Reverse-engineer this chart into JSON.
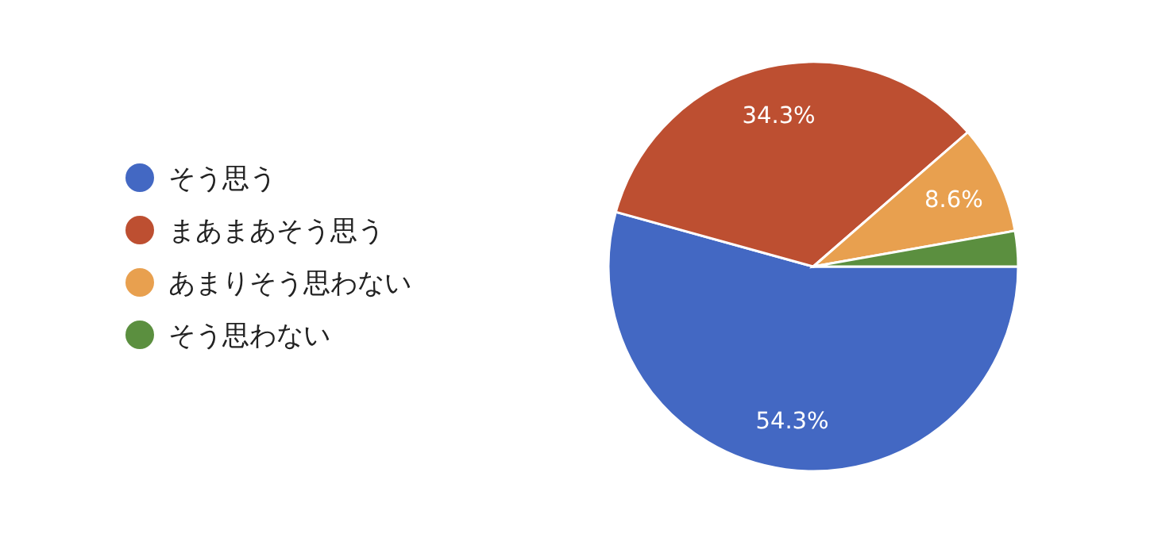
{
  "chart_data": {
    "type": "pie",
    "categories": [
      "そう思う",
      "まあまあそう思う",
      "あまりそう思わない",
      "そう思わない"
    ],
    "values": [
      54.3,
      34.3,
      8.6,
      2.8
    ],
    "colors": [
      "#4368c3",
      "#bd4f31",
      "#e8a04f",
      "#5b8f3f"
    ],
    "value_labels": [
      "54.3%",
      "34.3%",
      "8.6%",
      null
    ],
    "legend": "left"
  }
}
